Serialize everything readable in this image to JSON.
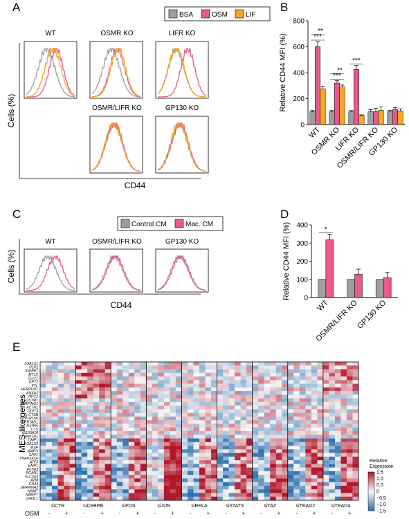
{
  "colors": {
    "bsa": "#9e9e9e",
    "osm": "#e75a8c",
    "lif": "#f5a623",
    "control_cm": "#9e9e9e",
    "mac_cm": "#e75a8c",
    "heat_low": "#2c6fb0",
    "heat_mid": "#f7f7f7",
    "heat_high": "#b2182b"
  },
  "panels": {
    "a": {
      "label": "A",
      "legend": [
        "BSA",
        "OSM",
        "LIF"
      ],
      "ylabel": "Cells (%)",
      "xlabel": "CD44",
      "titles": [
        "WT",
        "OSMR KO",
        "LIFR KO",
        "OSMR/LIFR KO",
        "GP130 KO"
      ]
    },
    "b": {
      "label": "B"
    },
    "c": {
      "label": "C",
      "legend": [
        "Control CM",
        "Mac. CM"
      ],
      "ylabel": "Cells (%)",
      "xlabel": "CD44",
      "titles": [
        "WT",
        "OSMR/LIFR KO",
        "GP130 KO"
      ]
    },
    "d": {
      "label": "D"
    },
    "e": {
      "label": "E",
      "ylabel": "MES-like genes",
      "row_label": "OSM",
      "minus": "-",
      "plus": "+",
      "colorbar_title": "Relative Expression",
      "colorbar_ticks": [
        "1.5",
        "1.0",
        "0.5",
        "0",
        "−0.5",
        "−1.0",
        "−1.5"
      ]
    }
  },
  "chart_data": [
    {
      "id": "panel-b",
      "type": "bar",
      "ylabel": "Relative CD44 MFI (%)",
      "ylim": [
        0,
        800
      ],
      "yticks": [
        0,
        200,
        400,
        600,
        800
      ],
      "categories": [
        "WT",
        "OSMR KO",
        "LIFR KO",
        "OSMR/LIFR KO",
        "GP130 KO"
      ],
      "series": [
        {
          "name": "BSA",
          "values": [
            100,
            100,
            100,
            100,
            100
          ],
          "errors": [
            8,
            8,
            8,
            15,
            10
          ]
        },
        {
          "name": "OSM",
          "values": [
            600,
            320,
            425,
            100,
            115
          ],
          "errors": [
            40,
            20,
            30,
            25,
            15
          ]
        },
        {
          "name": "LIF",
          "values": [
            275,
            290,
            70,
            110,
            105
          ],
          "errors": [
            20,
            15,
            5,
            25,
            15
          ]
        }
      ],
      "annotations": [
        {
          "category": "WT",
          "text": "***"
        },
        {
          "category": "WT",
          "text": "**"
        },
        {
          "category": "OSMR KO",
          "text": "***"
        },
        {
          "category": "OSMR KO",
          "text": "**"
        },
        {
          "category": "LIFR KO",
          "text": "***"
        }
      ]
    },
    {
      "id": "panel-d",
      "type": "bar",
      "ylabel": "Relative CD44 MFI (%)",
      "ylim": [
        0,
        400
      ],
      "yticks": [
        0,
        100,
        200,
        300,
        400
      ],
      "categories": [
        "WT",
        "OSMR/LIFR KO",
        "GP130 KO"
      ],
      "series": [
        {
          "name": "Control CM",
          "values": [
            100,
            100,
            100
          ],
          "errors": [
            0,
            0,
            0
          ]
        },
        {
          "name": "Mac. CM",
          "values": [
            318,
            128,
            110
          ],
          "errors": [
            30,
            28,
            28
          ]
        }
      ],
      "annotations": [
        {
          "category": "WT",
          "text": "*"
        }
      ]
    },
    {
      "id": "panel-e",
      "type": "heatmap",
      "title": "",
      "genes": [
        "LGALS1",
        "PLP2",
        "IGFBP7",
        "MT1X",
        "CLIC1",
        "GPT2",
        "FTL",
        "HERPUD1",
        "ANXA2",
        "NPC2",
        "SQSTM1",
        "SERPING1",
        "ACTN1",
        "DDIT3",
        "CTSB",
        "PPP1R15A",
        "SERTAD1",
        "HSPA5",
        "C1S",
        "S100A10",
        "WWTR1",
        "TIMP1",
        "LGALS3",
        "MSP",
        "WARS",
        "SPP1",
        "TNFRSF1A",
        "ATF3",
        "EMP1",
        "IFITM3",
        "RCAN1",
        "SLC2A3",
        "A2M",
        "CD44",
        "SERPINA3",
        "NNMT",
        "NAMPT",
        "CHI3L1"
      ],
      "groups": [
        "siCTR",
        "siCEBPB",
        "siFOS",
        "siJUN",
        "siRELA",
        "siSTAT3",
        "siTAZ",
        "siTEAD2",
        "siTEAD4"
      ],
      "osm_row": [
        "-",
        "+",
        "-",
        "+",
        "-",
        "+",
        "-",
        "+",
        "-",
        "+",
        "-",
        "+",
        "-",
        "+",
        "-",
        "+",
        "-",
        "+"
      ],
      "value_range": [
        -1.5,
        1.5
      ]
    }
  ]
}
